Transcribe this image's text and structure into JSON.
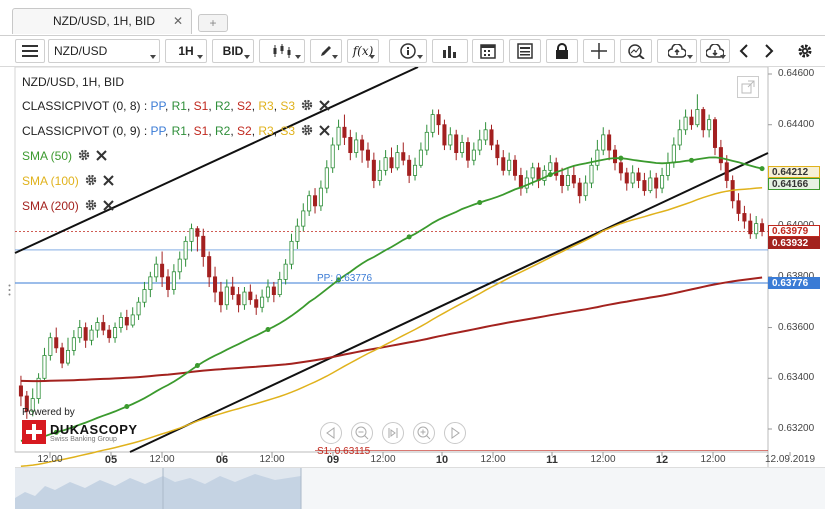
{
  "tabs": [
    {
      "label": "NZD/USD, 1H, BID"
    }
  ],
  "tab_add_label": "+",
  "toolbar": {
    "instrument": "NZD/USD",
    "period": "1H",
    "side": "BID"
  },
  "legend": {
    "title": "NZD/USD, 1H, BID",
    "pivots": [
      {
        "label": "CLASSICPIVOT (0, 8)",
        "levels": [
          "PP",
          "R1",
          "S1",
          "R2",
          "S2",
          "R3",
          "S3"
        ]
      },
      {
        "label": "CLASSICPIVOT (0, 9)",
        "levels": [
          "PP",
          "R1",
          "S1",
          "R2",
          "S2",
          "R3",
          "S3"
        ]
      }
    ],
    "smas": [
      {
        "label": "SMA (50)",
        "color": "#3b9a2e"
      },
      {
        "label": "SMA (100)",
        "color": "#e0b21c"
      },
      {
        "label": "SMA (200)",
        "color": "#a3221e"
      }
    ]
  },
  "colors": {
    "bull": "#2f8f3a",
    "bear": "#a32020",
    "pp": "#3a7bd5",
    "r1": "#2f8f3a",
    "s1": "#c0281e",
    "r2": "#2f8f3a",
    "s2": "#c0281e",
    "r3": "#e0b21c",
    "s3": "#e0b21c"
  },
  "chart_data": {
    "type": "candlestick",
    "y_ticks": [
      "0.64600",
      "0.64400",
      "0.64200",
      "0.64000",
      "0.63800",
      "0.63600",
      "0.63400",
      "0.63200"
    ],
    "x_ticks": [
      {
        "label": "12:00",
        "day": false
      },
      {
        "label": "05",
        "day": true
      },
      {
        "label": "12:00",
        "day": false
      },
      {
        "label": "06",
        "day": true
      },
      {
        "label": "12:00",
        "day": false
      },
      {
        "label": "09",
        "day": true
      },
      {
        "label": "12:00",
        "day": false
      },
      {
        "label": "10",
        "day": true
      },
      {
        "label": "12:00",
        "day": false
      },
      {
        "label": "11",
        "day": true
      },
      {
        "label": "12:00",
        "day": false
      },
      {
        "label": "12",
        "day": true
      },
      {
        "label": "12:00",
        "day": false
      },
      {
        "label": "12.09.2019",
        "day": false
      }
    ],
    "price_tags": [
      {
        "value": "0.64212",
        "bg": "#f6f0d5",
        "fg": "#333",
        "border": "#e0b21c"
      },
      {
        "value": "0.64166",
        "bg": "#e6f2e3",
        "fg": "#333",
        "border": "#3b9a2e"
      },
      {
        "value": "0.63979",
        "bg": "#ffffff",
        "fg": "#c0281e",
        "border": "#c0281e"
      },
      {
        "value": "0.63932",
        "bg": "#a3221e",
        "fg": "#ffffff",
        "border": "#a3221e"
      },
      {
        "value": "0.63776",
        "bg": "#3a7bd5",
        "fg": "#ffffff",
        "border": "#3a7bd5"
      }
    ],
    "pivot_labels": [
      {
        "text": "PP: 0.63776",
        "color": "#3a7bd5"
      },
      {
        "text": "S1: 0.63115",
        "color": "#c0281e"
      }
    ],
    "candles": [
      [
        0.6337,
        0.6333,
        0.6341,
        0.6329
      ],
      [
        0.6333,
        0.6327,
        0.6335,
        0.6324
      ],
      [
        0.6327,
        0.6332,
        0.6336,
        0.6325
      ],
      [
        0.6332,
        0.634,
        0.6342,
        0.633
      ],
      [
        0.634,
        0.6349,
        0.6352,
        0.6339
      ],
      [
        0.6349,
        0.6356,
        0.6358,
        0.6347
      ],
      [
        0.6356,
        0.6352,
        0.636,
        0.635
      ],
      [
        0.6352,
        0.6346,
        0.6354,
        0.6344
      ],
      [
        0.6346,
        0.6351,
        0.6356,
        0.6345
      ],
      [
        0.6351,
        0.6356,
        0.6359,
        0.6349
      ],
      [
        0.6356,
        0.636,
        0.6363,
        0.6354
      ],
      [
        0.636,
        0.6355,
        0.6362,
        0.6352
      ],
      [
        0.6355,
        0.6359,
        0.6361,
        0.6353
      ],
      [
        0.6359,
        0.6362,
        0.6364,
        0.6356
      ],
      [
        0.6362,
        0.6359,
        0.6365,
        0.6357
      ],
      [
        0.6359,
        0.6356,
        0.6361,
        0.6354
      ],
      [
        0.6356,
        0.636,
        0.6362,
        0.6354
      ],
      [
        0.636,
        0.6364,
        0.6366,
        0.6358
      ],
      [
        0.6364,
        0.6361,
        0.6367,
        0.6359
      ],
      [
        0.6361,
        0.6365,
        0.6368,
        0.636
      ],
      [
        0.6365,
        0.637,
        0.6372,
        0.6363
      ],
      [
        0.637,
        0.6375,
        0.6378,
        0.6368
      ],
      [
        0.6375,
        0.638,
        0.6382,
        0.6372
      ],
      [
        0.638,
        0.6385,
        0.6388,
        0.6378
      ],
      [
        0.6385,
        0.638,
        0.639,
        0.6376
      ],
      [
        0.638,
        0.6375,
        0.6383,
        0.6372
      ],
      [
        0.6375,
        0.6382,
        0.6385,
        0.6373
      ],
      [
        0.6382,
        0.6387,
        0.639,
        0.6379
      ],
      [
        0.6387,
        0.6394,
        0.6396,
        0.6384
      ],
      [
        0.6394,
        0.6399,
        0.6401,
        0.639
      ],
      [
        0.6399,
        0.6396,
        0.64,
        0.639
      ],
      [
        0.6396,
        0.6388,
        0.6399,
        0.6384
      ],
      [
        0.6388,
        0.638,
        0.639,
        0.6376
      ],
      [
        0.638,
        0.6374,
        0.6384,
        0.637
      ],
      [
        0.6374,
        0.6369,
        0.6378,
        0.6366
      ],
      [
        0.6369,
        0.6376,
        0.6379,
        0.6367
      ],
      [
        0.6376,
        0.6373,
        0.638,
        0.6371
      ],
      [
        0.6373,
        0.6369,
        0.6376,
        0.6366
      ],
      [
        0.6369,
        0.6374,
        0.6376,
        0.6367
      ],
      [
        0.6374,
        0.6371,
        0.6377,
        0.6369
      ],
      [
        0.6371,
        0.6368,
        0.6373,
        0.6365
      ],
      [
        0.6368,
        0.6372,
        0.6375,
        0.6366
      ],
      [
        0.6372,
        0.6376,
        0.6379,
        0.637
      ],
      [
        0.6376,
        0.6373,
        0.6378,
        0.637
      ],
      [
        0.6373,
        0.6379,
        0.6382,
        0.6372
      ],
      [
        0.6379,
        0.6385,
        0.6387,
        0.6377
      ],
      [
        0.6385,
        0.6394,
        0.6397,
        0.6383
      ],
      [
        0.6394,
        0.64,
        0.6403,
        0.6391
      ],
      [
        0.64,
        0.6406,
        0.6409,
        0.6398
      ],
      [
        0.6406,
        0.6412,
        0.6414,
        0.6404
      ],
      [
        0.6412,
        0.6408,
        0.6415,
        0.6405
      ],
      [
        0.6408,
        0.6415,
        0.6418,
        0.6406
      ],
      [
        0.6415,
        0.6423,
        0.6426,
        0.6413
      ],
      [
        0.6423,
        0.6432,
        0.6435,
        0.6421
      ],
      [
        0.6432,
        0.6439,
        0.6442,
        0.643
      ],
      [
        0.6439,
        0.6435,
        0.6444,
        0.6432
      ],
      [
        0.6435,
        0.6429,
        0.6438,
        0.6426
      ],
      [
        0.6429,
        0.6434,
        0.6437,
        0.6427
      ],
      [
        0.6434,
        0.643,
        0.6436,
        0.6425
      ],
      [
        0.643,
        0.6426,
        0.6433,
        0.6423
      ],
      [
        0.6426,
        0.6418,
        0.6429,
        0.6415
      ],
      [
        0.6418,
        0.6422,
        0.6426,
        0.6416
      ],
      [
        0.6422,
        0.6427,
        0.643,
        0.642
      ],
      [
        0.6427,
        0.6423,
        0.6431,
        0.6421
      ],
      [
        0.6423,
        0.6429,
        0.6432,
        0.6422
      ],
      [
        0.6429,
        0.6426,
        0.6433,
        0.6424
      ],
      [
        0.6426,
        0.642,
        0.6428,
        0.6417
      ],
      [
        0.642,
        0.6424,
        0.6427,
        0.6418
      ],
      [
        0.6424,
        0.643,
        0.6433,
        0.6423
      ],
      [
        0.643,
        0.6437,
        0.644,
        0.6428
      ],
      [
        0.6437,
        0.6444,
        0.6446,
        0.6435
      ],
      [
        0.6444,
        0.644,
        0.6446,
        0.6436
      ],
      [
        0.644,
        0.6432,
        0.6442,
        0.643
      ],
      [
        0.6432,
        0.6436,
        0.6439,
        0.643
      ],
      [
        0.6436,
        0.6429,
        0.6438,
        0.6426
      ],
      [
        0.6429,
        0.6433,
        0.6436,
        0.6427
      ],
      [
        0.6433,
        0.6426,
        0.6435,
        0.6423
      ],
      [
        0.6426,
        0.643,
        0.6433,
        0.6424
      ],
      [
        0.643,
        0.6434,
        0.6438,
        0.6428
      ],
      [
        0.6434,
        0.6438,
        0.6441,
        0.6432
      ],
      [
        0.6438,
        0.6432,
        0.644,
        0.643
      ],
      [
        0.6432,
        0.6427,
        0.6434,
        0.6424
      ],
      [
        0.6427,
        0.6422,
        0.643,
        0.642
      ],
      [
        0.6422,
        0.6426,
        0.6429,
        0.642
      ],
      [
        0.6426,
        0.642,
        0.6428,
        0.6418
      ],
      [
        0.642,
        0.6415,
        0.6423,
        0.6412
      ],
      [
        0.6415,
        0.6419,
        0.6422,
        0.6413
      ],
      [
        0.6419,
        0.6423,
        0.6425,
        0.6416
      ],
      [
        0.6423,
        0.6418,
        0.6425,
        0.6415
      ],
      [
        0.6418,
        0.6422,
        0.6424,
        0.6416
      ],
      [
        0.6422,
        0.6425,
        0.6428,
        0.642
      ],
      [
        0.6425,
        0.642,
        0.6427,
        0.6418
      ],
      [
        0.642,
        0.6416,
        0.6423,
        0.6413
      ],
      [
        0.6416,
        0.642,
        0.6423,
        0.6414
      ],
      [
        0.642,
        0.6417,
        0.6424,
        0.6415
      ],
      [
        0.6417,
        0.6412,
        0.6419,
        0.6409
      ],
      [
        0.6412,
        0.6417,
        0.642,
        0.641
      ],
      [
        0.6417,
        0.6424,
        0.6427,
        0.6415
      ],
      [
        0.6424,
        0.643,
        0.6434,
        0.6422
      ],
      [
        0.643,
        0.6436,
        0.6439,
        0.6428
      ],
      [
        0.6436,
        0.643,
        0.6438,
        0.6426
      ],
      [
        0.643,
        0.6425,
        0.6432,
        0.6422
      ],
      [
        0.6425,
        0.6421,
        0.6427,
        0.6418
      ],
      [
        0.6421,
        0.6417,
        0.6423,
        0.6414
      ],
      [
        0.6417,
        0.6421,
        0.6424,
        0.6415
      ],
      [
        0.6421,
        0.6418,
        0.6423,
        0.6415
      ],
      [
        0.6418,
        0.6414,
        0.6421,
        0.6412
      ],
      [
        0.6414,
        0.6419,
        0.6422,
        0.6413
      ],
      [
        0.6419,
        0.6415,
        0.6421,
        0.6411
      ],
      [
        0.6415,
        0.642,
        0.6423,
        0.6413
      ],
      [
        0.642,
        0.6425,
        0.6429,
        0.6418
      ],
      [
        0.6425,
        0.6432,
        0.6435,
        0.6423
      ],
      [
        0.6432,
        0.6438,
        0.6442,
        0.643
      ],
      [
        0.6438,
        0.6443,
        0.6446,
        0.6436
      ],
      [
        0.6443,
        0.644,
        0.6446,
        0.6438
      ],
      [
        0.644,
        0.6446,
        0.6452,
        0.6439
      ],
      [
        0.6446,
        0.6438,
        0.6447,
        0.6435
      ],
      [
        0.6438,
        0.6442,
        0.6444,
        0.6435
      ],
      [
        0.6442,
        0.6431,
        0.6443,
        0.6428
      ],
      [
        0.6431,
        0.6425,
        0.6434,
        0.6422
      ],
      [
        0.6425,
        0.6418,
        0.6428,
        0.6415
      ],
      [
        0.6418,
        0.641,
        0.642,
        0.6407
      ],
      [
        0.641,
        0.6405,
        0.6413,
        0.6402
      ],
      [
        0.6405,
        0.6402,
        0.6408,
        0.6399
      ],
      [
        0.6402,
        0.6397,
        0.6405,
        0.6395
      ],
      [
        0.6397,
        0.6401,
        0.6404,
        0.6395
      ],
      [
        0.6401,
        0.63979,
        0.6403,
        0.6396
      ]
    ]
  }
}
